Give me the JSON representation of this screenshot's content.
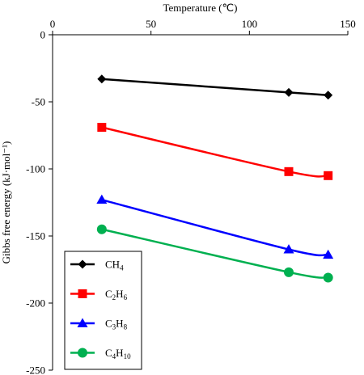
{
  "chart_data": {
    "type": "line",
    "xlabel": "Temperature (℃)",
    "ylabel": "Gibbs free energy (kJ·mol⁻¹)",
    "xlim": [
      0,
      150
    ],
    "ylim": [
      -250,
      0
    ],
    "x_ticks": [
      "0",
      "50",
      "100",
      "150"
    ],
    "y_ticks": [
      "0",
      "-50",
      "-100",
      "-150",
      "-200",
      "-250"
    ],
    "x_axis_position": "top",
    "grid": false,
    "legend_position": "bottom-left",
    "series": [
      {
        "name": "CH4",
        "legend_main": [
          "CH",
          ""
        ],
        "legend_sub": [
          "4",
          ""
        ],
        "color": "#000000",
        "marker": "diamond",
        "x": [
          25,
          120,
          140
        ],
        "y": [
          -33,
          -43,
          -45
        ]
      },
      {
        "name": "C2H6",
        "legend_main": [
          "C",
          "H"
        ],
        "legend_sub": [
          "2",
          "6"
        ],
        "color": "#ff0000",
        "marker": "square",
        "x": [
          25,
          120,
          140
        ],
        "y": [
          -69,
          -102,
          -105
        ]
      },
      {
        "name": "C3H8",
        "legend_main": [
          "C",
          "H"
        ],
        "legend_sub": [
          "3",
          "8"
        ],
        "color": "#0000ff",
        "marker": "triangle",
        "x": [
          25,
          120,
          140
        ],
        "y": [
          -123,
          -160,
          -164
        ]
      },
      {
        "name": "C4H10",
        "legend_main": [
          "C",
          "H"
        ],
        "legend_sub": [
          "4",
          "10"
        ],
        "color": "#00b050",
        "marker": "circle",
        "x": [
          25,
          120,
          140
        ],
        "y": [
          -145,
          -177,
          -181
        ]
      }
    ]
  }
}
